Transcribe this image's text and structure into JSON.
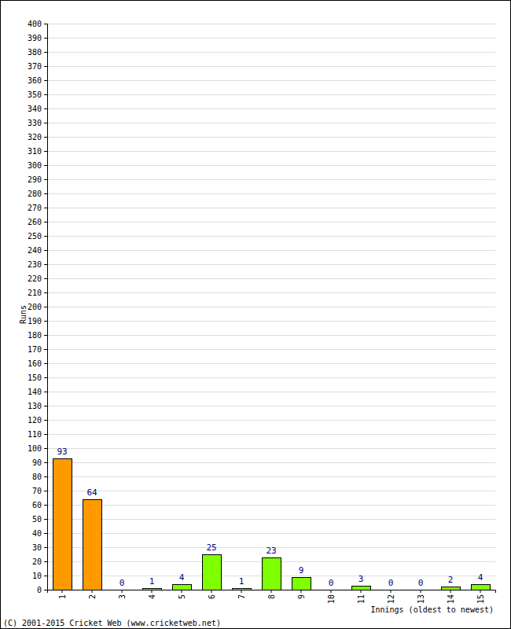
{
  "chart_data": {
    "type": "bar",
    "x_label": "Innings (oldest to newest)",
    "y_label": "Runs",
    "annotations": [
      "(C) 2001-2015 Cricket Web (www.cricketweb.net)"
    ],
    "categories": [
      "1",
      "2",
      "3",
      "4",
      "5",
      "6",
      "7",
      "8",
      "9",
      "10",
      "11",
      "12",
      "13",
      "14",
      "15"
    ],
    "values": [
      93,
      64,
      0,
      1,
      4,
      25,
      1,
      23,
      9,
      0,
      3,
      0,
      0,
      2,
      4
    ],
    "colors": [
      "#ff9900",
      "#ff9900",
      "#80ff00",
      "#80ff00",
      "#80ff00",
      "#80ff00",
      "#80ff00",
      "#80ff00",
      "#80ff00",
      "#80ff00",
      "#80ff00",
      "#80ff00",
      "#80ff00",
      "#80ff00",
      "#80ff00"
    ],
    "ylim": [
      0,
      400
    ],
    "yticks": [
      0,
      10,
      20,
      30,
      40,
      50,
      60,
      70,
      80,
      90,
      100,
      110,
      120,
      130,
      140,
      150,
      160,
      170,
      180,
      190,
      200,
      210,
      220,
      230,
      240,
      250,
      260,
      270,
      280,
      290,
      300,
      310,
      320,
      330,
      340,
      350,
      360,
      370,
      380,
      390,
      400
    ],
    "grid": true,
    "data_labels": true
  }
}
